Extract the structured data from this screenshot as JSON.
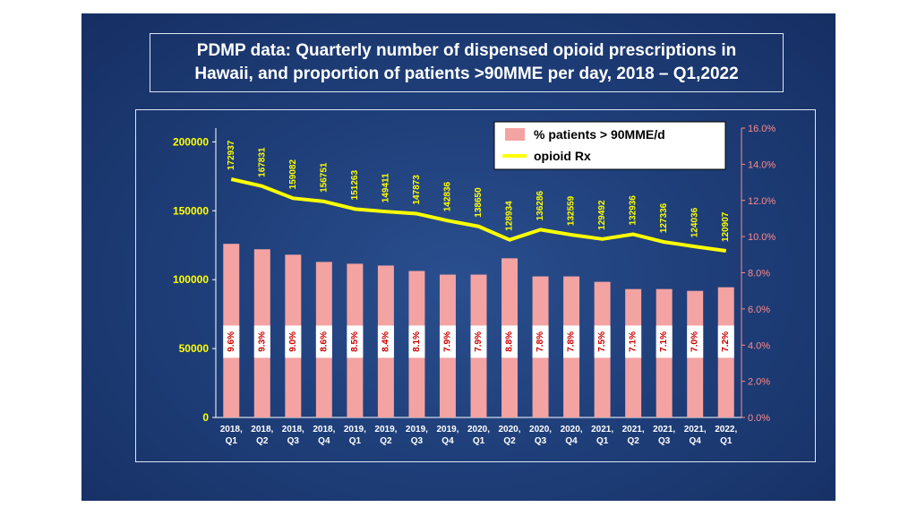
{
  "title_line1": "PDMP data: Quarterly number of dispensed opioid prescriptions in",
  "title_line2": "Hawaii, and proportion of patients >90MME per day, 2018 – Q1,2022",
  "chart_data": {
    "type": "bar",
    "categories": [
      [
        "2018,",
        "Q1"
      ],
      [
        "2018,",
        "Q2"
      ],
      [
        "2018,",
        "Q3"
      ],
      [
        "2018,",
        "Q4"
      ],
      [
        "2019,",
        "Q1"
      ],
      [
        "2019,",
        "Q2"
      ],
      [
        "2019,",
        "Q3"
      ],
      [
        "2019,",
        "Q4"
      ],
      [
        "2020,",
        "Q1"
      ],
      [
        "2020,",
        "Q2"
      ],
      [
        "2020,",
        "Q3"
      ],
      [
        "2020,",
        "Q4"
      ],
      [
        "2021,",
        "Q1"
      ],
      [
        "2021,",
        "Q2"
      ],
      [
        "2021,",
        "Q3"
      ],
      [
        "2021,",
        "Q4"
      ],
      [
        "2022,",
        "Q1"
      ]
    ],
    "series": [
      {
        "name": "% patients > 90MME/d",
        "type": "bar",
        "axis": "right",
        "values": [
          9.6,
          9.3,
          9.0,
          8.6,
          8.5,
          8.4,
          8.1,
          7.9,
          7.9,
          8.8,
          7.8,
          7.8,
          7.5,
          7.1,
          7.1,
          7.0,
          7.2
        ],
        "labels": [
          "9.6%",
          "9.3%",
          "9.0%",
          "8.6%",
          "8.5%",
          "8.4%",
          "8.1%",
          "7.9%",
          "7.9%",
          "8.8%",
          "7.8%",
          "7.8%",
          "7.5%",
          "7.1%",
          "7.1%",
          "7.0%",
          "7.2%"
        ],
        "color": "#f4a3a3"
      },
      {
        "name": "opioid Rx",
        "type": "line",
        "axis": "left",
        "values": [
          172937,
          167831,
          159082,
          156751,
          151263,
          149411,
          147873,
          142836,
          138650,
          128934,
          136286,
          132559,
          129492,
          132936,
          127336,
          124036,
          120907
        ],
        "color": "#ffff00"
      }
    ],
    "y_left": {
      "ylim": [
        0,
        210000
      ],
      "ticks": [
        0,
        50000,
        100000,
        150000,
        200000
      ],
      "tick_labels": [
        "0",
        "50000",
        "100000",
        "150000",
        "200000"
      ]
    },
    "y_right": {
      "ylim": [
        0,
        16
      ],
      "ticks": [
        0,
        2,
        4,
        6,
        8,
        10,
        12,
        14,
        16
      ],
      "tick_labels": [
        "0.0%",
        "2.0%",
        "4.0%",
        "6.0%",
        "8.0%",
        "10.0%",
        "12.0%",
        "14.0%",
        "16.0%"
      ]
    },
    "legend_position": "top-right",
    "grid": false
  },
  "colors": {
    "background": "#1f3f7a",
    "line": "#ffff00",
    "bar": "#f4a3a3",
    "right_axis": "#ff8a8a"
  }
}
